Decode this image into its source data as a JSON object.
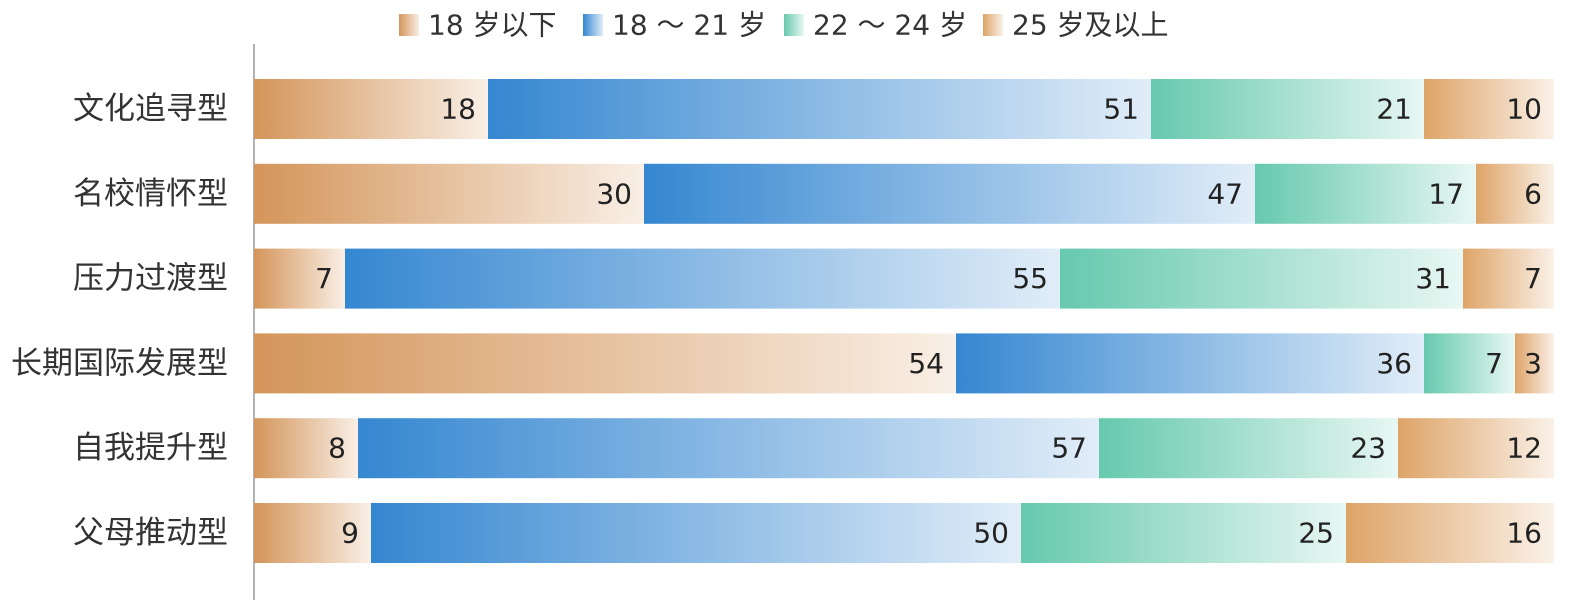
{
  "chart_data": {
    "type": "bar",
    "orientation": "horizontal",
    "stacked": "percent",
    "title": "",
    "xlabel": "",
    "ylabel": "",
    "xlim": [
      0,
      100
    ],
    "grid": false,
    "legend_position": "top",
    "categories": [
      "文化追寻型",
      "名校情怀型",
      "压力过渡型",
      "长期国际发展型",
      "自我提升型",
      "父母推动型"
    ],
    "series": [
      {
        "name": "18 岁以下",
        "color": "#d4955a",
        "values": [
          18,
          30,
          7,
          54,
          8,
          9
        ]
      },
      {
        "name": "18 ～ 21 岁",
        "color": "#3587d1",
        "values": [
          51,
          47,
          55,
          36,
          57,
          50
        ]
      },
      {
        "name": "22 ～ 24 岁",
        "color": "#66c9ad",
        "values": [
          21,
          17,
          31,
          7,
          23,
          25
        ]
      },
      {
        "name": "25 岁及以上",
        "color": "#dea468",
        "values": [
          10,
          6,
          7,
          3,
          12,
          16
        ]
      }
    ]
  }
}
